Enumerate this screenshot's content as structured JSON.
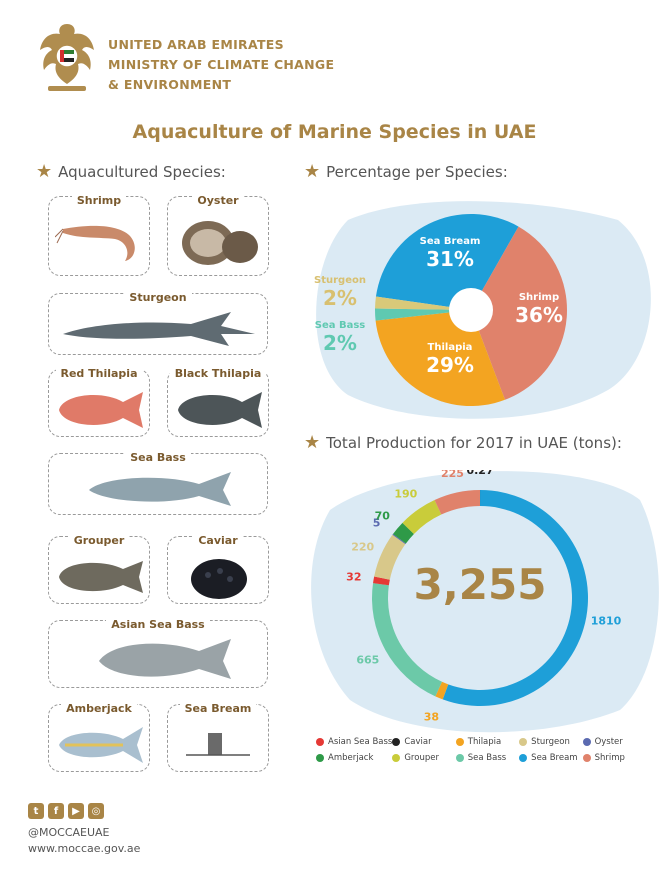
{
  "header": {
    "ministry_lines": [
      "UNITED ARAB EMIRATES",
      "MINISTRY OF CLIMATE CHANGE",
      "& ENVIRONMENT"
    ],
    "title": "Aquaculture of Marine Species in UAE"
  },
  "species_section": {
    "title": "Aquacultured Species:",
    "cards": [
      "Shrimp",
      "Oyster",
      "Sturgeon",
      "Red Thilapia",
      "Black Thilapia",
      "Sea Bass",
      "Grouper",
      "Caviar",
      "Asian Sea Bass",
      "Amberjack",
      "Sea Bream"
    ]
  },
  "pie_section": {
    "title": "Percentage per Species:"
  },
  "donut_section": {
    "title": "Total Production for 2017 in UAE (tons):",
    "total": "3,255"
  },
  "chart_data": [
    {
      "type": "pie",
      "slices": [
        {
          "name": "Sea Bream",
          "label": "31%",
          "value": 31,
          "color": "#1e9fd8"
        },
        {
          "name": "Shrimp",
          "label": "36%",
          "value": 36,
          "color": "#e0826b"
        },
        {
          "name": "Thilapia",
          "label": "29%",
          "value": 29,
          "color": "#f3a421"
        },
        {
          "name": "Sea Bass",
          "label": "2%",
          "value": 2,
          "color": "#5fc9b1"
        },
        {
          "name": "Sturgeon",
          "label": "2%",
          "value": 2,
          "color": "#d9c979"
        }
      ]
    },
    {
      "type": "pie",
      "center_label": "3,255",
      "legend_position": "bottom",
      "slices": [
        {
          "name": "Caviar",
          "value": 0.27,
          "label": "0.27",
          "color": "#222222"
        },
        {
          "name": "Sea Bream",
          "value": 1810,
          "label": "1810",
          "color": "#1e9fd8"
        },
        {
          "name": "Thilapia",
          "value": 38,
          "label": "38",
          "color": "#f3a421"
        },
        {
          "name": "Sea Bass",
          "value": 665,
          "label": "665",
          "color": "#6cc9a8"
        },
        {
          "name": "Asian Sea Bass",
          "value": 32,
          "label": "32",
          "color": "#e53935"
        },
        {
          "name": "Sturgeon",
          "value": 220,
          "label": "220",
          "color": "#d8c88a"
        },
        {
          "name": "Oyster",
          "value": 5,
          "label": "5",
          "color": "#5b6ab0"
        },
        {
          "name": "Amberjack",
          "value": 70,
          "label": "70",
          "color": "#2e9a48"
        },
        {
          "name": "Grouper",
          "value": 190,
          "label": "190",
          "color": "#c9cc3a"
        },
        {
          "name": "Shrimp",
          "value": 225,
          "label": "225",
          "color": "#e0826b"
        }
      ]
    }
  ],
  "legend": [
    {
      "name": "Asian Sea Bass",
      "color": "#e53935"
    },
    {
      "name": "Caviar",
      "color": "#222222"
    },
    {
      "name": "Thilapia",
      "color": "#f3a421"
    },
    {
      "name": "Sturgeon",
      "color": "#d8c88a"
    },
    {
      "name": "Oyster",
      "color": "#5b6ab0"
    },
    {
      "name": "Amberjack",
      "color": "#2e9a48"
    },
    {
      "name": "Grouper",
      "color": "#c9cc3a"
    },
    {
      "name": "Sea Bass",
      "color": "#6cc9a8"
    },
    {
      "name": "Sea Bream",
      "color": "#1e9fd8"
    },
    {
      "name": "Shrimp",
      "color": "#e0826b"
    }
  ],
  "footer": {
    "social_icons": [
      "twitter-icon",
      "facebook-icon",
      "youtube-icon",
      "instagram-icon"
    ],
    "handle": "@MOCCAEUAE",
    "website": "www.moccae.gov.ae"
  }
}
